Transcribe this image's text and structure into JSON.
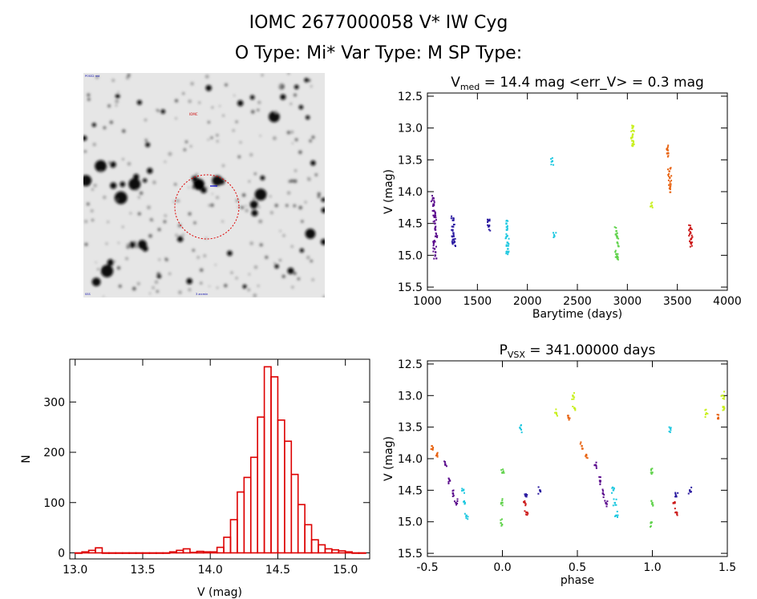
{
  "header": {
    "title_line1": "IOMC 2677000058    V* IW Cyg",
    "title_line2": "O Type: Mi*   Var Type: M   SP Type:"
  },
  "sky_image": {
    "description_marker": "finder chart",
    "label_top_left": "POSS2 red",
    "label_bottom_left": "SSS",
    "label_bottom_mid": "3 arcmin",
    "label_center": "IOMC",
    "colors": {
      "marker_circle": "#dd0000",
      "target_tick": "#0000cc"
    }
  },
  "chart_data": [
    {
      "type": "scatter",
      "id": "lightcurve",
      "title_main": "V",
      "title_sub": "med",
      "title_rest": " = 14.4 mag <err_V> = 0.3 mag",
      "xlabel": "Barytime (days)",
      "ylabel": "V (mag)",
      "xlim": [
        1000,
        4000
      ],
      "ylim": [
        15.55,
        12.45
      ],
      "y_reversed": true,
      "xticks": [
        1000,
        1500,
        2000,
        2500,
        3000,
        3500,
        4000
      ],
      "yticks": [
        12.5,
        13.0,
        13.5,
        14.0,
        14.5,
        15.0,
        15.5
      ],
      "series": [
        {
          "color": "#5a0a8c",
          "points": [
            [
              1055,
              14.1
            ],
            [
              1060,
              14.2
            ],
            [
              1065,
              14.3
            ],
            [
              1070,
              14.4
            ],
            [
              1075,
              14.5
            ],
            [
              1080,
              14.6
            ],
            [
              1085,
              14.7
            ],
            [
              1063,
              14.8
            ],
            [
              1072,
              14.9
            ],
            [
              1078,
              15.0
            ]
          ]
        },
        {
          "color": "#2a1aa0",
          "points": [
            [
              1255,
              14.45
            ],
            [
              1258,
              14.55
            ],
            [
              1260,
              14.65
            ],
            [
              1262,
              14.75
            ],
            [
              1265,
              14.8
            ],
            [
              1610,
              14.45
            ],
            [
              1612,
              14.55
            ]
          ]
        },
        {
          "color": "#1ec8e0",
          "points": [
            [
              1790,
              14.5
            ],
            [
              1793,
              14.6
            ],
            [
              1796,
              14.7
            ],
            [
              1800,
              14.8
            ],
            [
              1805,
              14.9
            ],
            [
              1798,
              14.95
            ],
            [
              2250,
              13.52
            ],
            [
              2270,
              14.7
            ]
          ]
        },
        {
          "color": "#5fd24a",
          "points": [
            [
              2890,
              14.62
            ],
            [
              2895,
              14.7
            ],
            [
              2900,
              14.8
            ],
            [
              2888,
              14.98
            ],
            [
              2895,
              15.03
            ]
          ]
        },
        {
          "color": "#c8f01e",
          "points": [
            [
              3050,
              13.0
            ],
            [
              3055,
              13.1
            ],
            [
              3048,
              13.2
            ],
            [
              3052,
              13.25
            ],
            [
              3245,
              14.22
            ]
          ]
        },
        {
          "color": "#e86412",
          "points": [
            [
              3395,
              13.33
            ],
            [
              3398,
              13.4
            ],
            [
              3420,
              13.68
            ],
            [
              3425,
              13.78
            ],
            [
              3428,
              13.88
            ],
            [
              3423,
              13.95
            ]
          ]
        },
        {
          "color": "#cc1a1a",
          "points": [
            [
              3630,
              14.58
            ],
            [
              3633,
              14.65
            ],
            [
              3635,
              14.75
            ],
            [
              3638,
              14.82
            ]
          ]
        }
      ]
    },
    {
      "type": "bar",
      "id": "histogram",
      "xlabel": "V (mag)",
      "ylabel": "N",
      "xlim": [
        12.96,
        15.18
      ],
      "ylim": [
        -12,
        385
      ],
      "xticks": [
        13.0,
        13.5,
        14.0,
        14.5,
        15.0
      ],
      "yticks": [
        0,
        100,
        200,
        300
      ],
      "bin_width": 0.05,
      "bin_starts": [
        13.0,
        13.05,
        13.1,
        13.15,
        13.2,
        13.25,
        13.3,
        13.35,
        13.4,
        13.45,
        13.5,
        13.55,
        13.6,
        13.65,
        13.7,
        13.75,
        13.8,
        13.85,
        13.9,
        13.95,
        14.0,
        14.05,
        14.1,
        14.15,
        14.2,
        14.25,
        14.3,
        14.35,
        14.4,
        14.45,
        14.5,
        14.55,
        14.6,
        14.65,
        14.7,
        14.75,
        14.8,
        14.85,
        14.9,
        14.95,
        15.0,
        15.05,
        15.1
      ],
      "counts": [
        0,
        2,
        5,
        10,
        0,
        0,
        0,
        0,
        0,
        0,
        0,
        0,
        0,
        0,
        2,
        5,
        8,
        1,
        3,
        2,
        2,
        11,
        31,
        66,
        121,
        150,
        190,
        270,
        370,
        350,
        264,
        222,
        156,
        96,
        56,
        26,
        16,
        8,
        6,
        4,
        2,
        0,
        0
      ],
      "colors": {
        "bar_edge": "#dd0000"
      }
    },
    {
      "type": "scatter",
      "id": "phased",
      "title_main": "P",
      "title_sub": "VSX",
      "title_rest": " = 341.00000 days",
      "xlabel": "phase",
      "ylabel": "V (mag)",
      "xlim": [
        -0.5,
        1.5
      ],
      "ylim": [
        15.55,
        12.45
      ],
      "y_reversed": true,
      "xticks": [
        -0.5,
        0.0,
        0.5,
        1.0,
        1.5
      ],
      "yticks": [
        12.5,
        13.0,
        13.5,
        14.0,
        14.5,
        15.0,
        15.5
      ],
      "series": [
        {
          "color": "#e86412",
          "points": [
            [
              -0.47,
              13.8
            ],
            [
              -0.44,
              13.95
            ],
            [
              0.53,
              13.8
            ],
            [
              0.56,
              13.95
            ],
            [
              0.44,
              13.35
            ],
            [
              1.44,
              13.35
            ]
          ]
        },
        {
          "color": "#5a0a8c",
          "points": [
            [
              -0.38,
              14.1
            ],
            [
              -0.35,
              14.35
            ],
            [
              -0.33,
              14.55
            ],
            [
              -0.31,
              14.7
            ],
            [
              0.62,
              14.1
            ],
            [
              0.65,
              14.35
            ],
            [
              0.67,
              14.55
            ],
            [
              0.69,
              14.7
            ]
          ]
        },
        {
          "color": "#1ec8e0",
          "points": [
            [
              -0.26,
              14.5
            ],
            [
              -0.25,
              14.7
            ],
            [
              -0.24,
              14.9
            ],
            [
              0.74,
              14.5
            ],
            [
              0.75,
              14.7
            ],
            [
              0.76,
              14.9
            ],
            [
              0.12,
              13.52
            ],
            [
              1.12,
              13.52
            ]
          ]
        },
        {
          "color": "#5fd24a",
          "points": [
            [
              0.0,
              14.22
            ],
            [
              0.0,
              14.7
            ],
            [
              -0.01,
              15.02
            ],
            [
              1.0,
              14.22
            ],
            [
              1.0,
              14.7
            ],
            [
              0.99,
              15.02
            ]
          ]
        },
        {
          "color": "#c8f01e",
          "points": [
            [
              0.47,
              13.0
            ],
            [
              0.48,
              13.2
            ],
            [
              1.47,
              13.0
            ],
            [
              1.48,
              13.2
            ],
            [
              0.36,
              13.28
            ],
            [
              1.36,
              13.28
            ]
          ]
        },
        {
          "color": "#2a1aa0",
          "points": [
            [
              0.16,
              14.6
            ],
            [
              0.25,
              14.5
            ],
            [
              1.16,
              14.6
            ],
            [
              1.25,
              14.5
            ]
          ]
        },
        {
          "color": "#cc1a1a",
          "points": [
            [
              0.15,
              14.7
            ],
            [
              0.16,
              14.85
            ],
            [
              1.15,
              14.7
            ],
            [
              1.16,
              14.85
            ]
          ]
        }
      ]
    }
  ]
}
